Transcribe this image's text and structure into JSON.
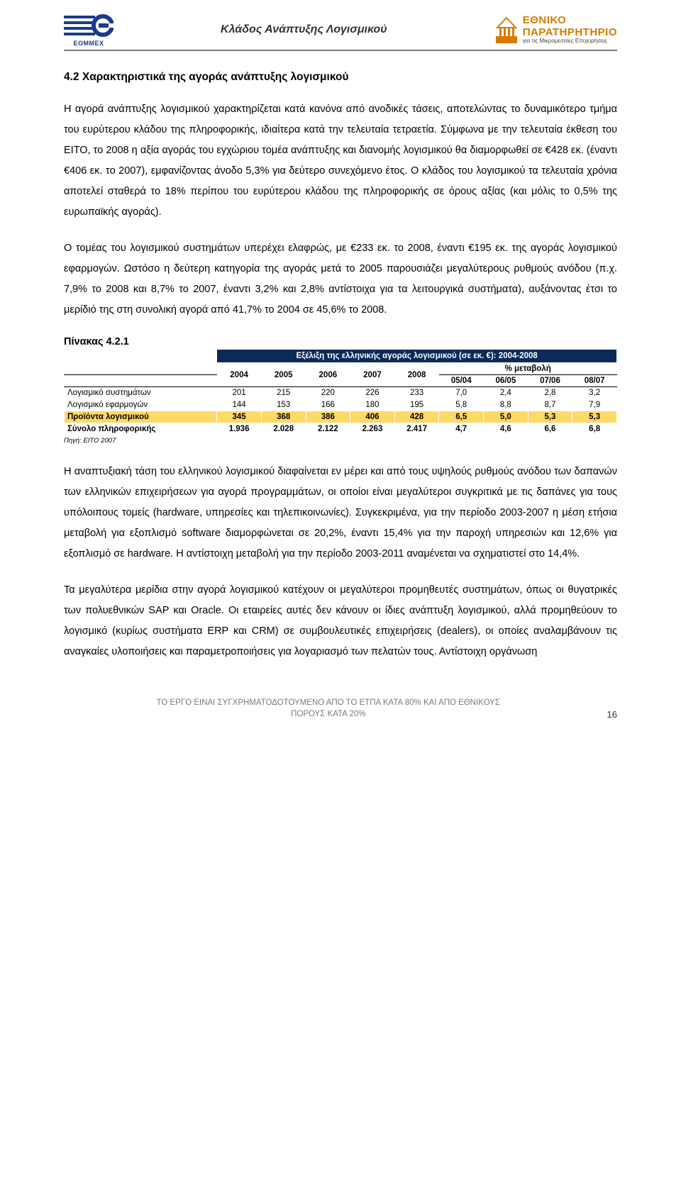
{
  "header": {
    "left_logo_text": "EOMMEX",
    "title": "Κλάδος Ανάπτυξης Λογισμικού",
    "right_logo_l1": "ΕΘΝΙΚΟ",
    "right_logo_l2": "ΠΑΡΑΤΗΡΗΤΗΡΙΟ",
    "right_logo_l3": "για τις Μικρομεσαίες Επιχειρήσεις"
  },
  "section_heading": "4.2 Χαρακτηριστικά της αγοράς ανάπτυξης λογισμικού",
  "para1": "Η αγορά ανάπτυξης λογισμικού χαρακτηρίζεται κατά κανόνα από ανοδικές τάσεις, αποτελώντας το δυναμικότερο τμήμα του ευρύτερου κλάδου της πληροφορικής, ιδιαίτερα κατά την τελευταία τετραετία. Σύμφωνα με την τελευταία έκθεση του EITO, το 2008 η αξία αγοράς του εγχώριου τομέα ανάπτυξης και διανομής λογισμικού θα διαμορφωθεί σε €428 εκ. (έναντι €406 εκ. το 2007), εμφανίζοντας άνοδο 5,3% για δεύτερο συνεχόμενο έτος. Ο κλάδος του λογισμικού τα τελευταία χρόνια αποτελεί σταθερά το 18% περίπου του ευρύτερου κλάδου της πληροφορικής σε όρους αξίας (και μόλις το 0,5% της ευρωπαϊκής αγοράς).",
  "para2": "Ο τομέας του λογισμικού συστημάτων υπερέχει ελαφρώς, με €233 εκ. το 2008, έναντι €195 εκ. της αγοράς λογισμικού εφαρμογών. Ωστόσο η δεύτερη κατηγορία της αγοράς μετά το 2005 παρουσιάζει μεγαλύτερους ρυθμούς ανόδου (π.χ. 7,9% το 2008 και 8,7% το 2007, έναντι 3,2% και 2,8% αντίστοιχα για τα λειτουργικά συστήματα), αυξάνοντας έτσι το μερίδιό της στη συνολική αγορά από 41,7% το 2004 σε 45,6% το 2008.",
  "table": {
    "caption": "Πίνακας 4.2.1",
    "title": "Εξέλιξη της ελληνικής αγοράς λογισμικού (σε εκ. €): 2004-2008",
    "year_headers": [
      "2004",
      "2005",
      "2006",
      "2007",
      "2008"
    ],
    "pct_header": "% μεταβολή",
    "pct_sub_headers": [
      "05/04",
      "06/05",
      "07/06",
      "08/07"
    ],
    "rows": [
      {
        "label": "Λογισμικό συστημάτων",
        "vals": [
          "201",
          "215",
          "220",
          "226",
          "233"
        ],
        "pct": [
          "7,0",
          "2,4",
          "2,8",
          "3,2"
        ],
        "hl": false,
        "total": false
      },
      {
        "label": "Λογισμικό εφαρμογών",
        "vals": [
          "144",
          "153",
          "166",
          "180",
          "195"
        ],
        "pct": [
          "5,8",
          "8,8",
          "8,7",
          "7,9"
        ],
        "hl": false,
        "total": false
      },
      {
        "label": "Προϊόντα λογισμικού",
        "vals": [
          "345",
          "368",
          "386",
          "406",
          "428"
        ],
        "pct": [
          "6,5",
          "5,0",
          "5,3",
          "5,3"
        ],
        "hl": true,
        "total": false
      },
      {
        "label": "Σύνολο πληροφορικής",
        "vals": [
          "1.936",
          "2.028",
          "2.122",
          "2.263",
          "2.417"
        ],
        "pct": [
          "4,7",
          "4,6",
          "6,6",
          "6,8"
        ],
        "hl": false,
        "total": true
      }
    ],
    "source": "Πηγή: EITO 2007",
    "colors": {
      "title_bg": "#0a2a58",
      "title_fg": "#ffffff",
      "highlight_bg": "#ffd966",
      "border": "#000000"
    }
  },
  "para3": "Η αναπτυξιακή τάση του ελληνικού λογισμικού διαφαίνεται εν μέρει και από τους υψηλούς ρυθμούς ανόδου των δαπανών των ελληνικών επιχειρήσεων για αγορά προγραμμάτων, οι οποίοι είναι μεγαλύτεροι συγκριτικά με τις δαπάνες για τους υπόλοιπους τομείς (hardware, υπηρεσίες και τηλεπικοινωνίες). Συγκεκριμένα, για την περίοδο 2003-2007 η μέση ετήσια μεταβολή για εξοπλισμό software διαμορφώνεται σε 20,2%, έναντι 15,4% για την παροχή υπηρεσιών και 12,6% για εξοπλισμό σε hardware. Η αντίστοιχη μεταβολή για την περίοδο 2003-2011 αναμένεται να σχηματιστεί στο 14,4%.",
  "para4": "Τα μεγαλύτερα μερίδια στην αγορά λογισμικού κατέχουν οι μεγαλύτεροι προμηθευτές συστημάτων, όπως οι θυγατρικές των πολυεθνικών SAP και Oracle. Οι εταιρείες αυτές δεν κάνουν οι ίδιες ανάπτυξη λογισμικού, αλλά προμηθεύουν το λογισμικό (κυρίως συστήματα ERP και CRM) σε συμβουλευτικές επιχειρήσεις (dealers), οι οποίες αναλαμβάνουν τις αναγκαίες υλοποιήσεις και παραμετροποιήσεις για λογαριασμό των πελατών τους. Αντίστοιχη οργάνωση",
  "footer": {
    "line1": "ΤΟ ΕΡΓΟ ΕΙΝΑΙ ΣΥΓΧΡΗΜΑΤΟΔΟΤΟΥΜΕΝΟ ΑΠΟ ΤΟ ΕΤΠΑ ΚΑΤΑ 80% ΚΑΙ ΑΠΟ ΕΘΝΙΚΟΥΣ",
    "line2": "ΠΟΡΟΥΣ ΚΑΤΑ 20%",
    "page_number": "16"
  }
}
